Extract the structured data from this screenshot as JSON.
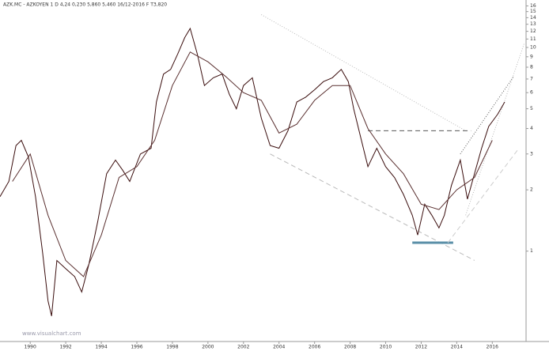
{
  "chart_data": {
    "type": "line",
    "header": "AZK.MC - AZKOYEN   1 D   4,24   0,230   5,860   5,460   16/12-2016 F   T3,820",
    "watermark": "www.visualchart.com",
    "log_scale": true,
    "grid": false,
    "xlim": [
      1988.3,
      2017.9
    ],
    "xticks": [
      1990,
      1992,
      1994,
      1996,
      1998,
      2000,
      2002,
      2004,
      2006,
      2008,
      2010,
      2012,
      2014,
      2016
    ],
    "ylim": [
      0.36,
      16.5
    ],
    "yticks": [
      1,
      2,
      3,
      4,
      5,
      6,
      7,
      8,
      9,
      10,
      11,
      12,
      13,
      14,
      15,
      16
    ],
    "series": [
      {
        "color": "#3a0d0d",
        "x": [
          1988.3,
          1988.8,
          1989.2,
          1989.5,
          1989.9,
          1990.3,
          1990.7,
          1991.0,
          1991.2,
          1991.5,
          1992.0,
          1992.5,
          1992.9,
          1993.3,
          1993.8,
          1994.3,
          1994.8,
          1995.2,
          1995.6,
          1996.2,
          1996.8,
          1997.1,
          1997.5,
          1997.9,
          1998.3,
          1998.7,
          1999.0,
          1999.4,
          1999.8,
          2000.3,
          2000.8,
          2001.2,
          2001.6,
          2002.0,
          2002.5,
          2003.0,
          2003.5,
          2004.0,
          2004.5,
          2005.0,
          2005.5,
          2006.0,
          2006.5,
          2007.0,
          2007.5,
          2007.9,
          2008.2,
          2008.6,
          2009.0,
          2009.5,
          2010.0,
          2010.5,
          2011.0,
          2011.5,
          2011.8,
          2012.2,
          2012.6,
          2013.0,
          2013.3,
          2013.7,
          2014.2,
          2014.6,
          2015.0,
          2015.4,
          2015.8,
          2016.3,
          2016.7
        ],
        "values": [
          1.85,
          2.2,
          3.3,
          3.5,
          2.9,
          1.85,
          0.98,
          0.57,
          0.48,
          0.9,
          0.82,
          0.75,
          0.63,
          0.86,
          1.4,
          2.4,
          2.8,
          2.5,
          2.2,
          3.0,
          3.2,
          5.4,
          7.4,
          7.8,
          9.3,
          11.2,
          12.4,
          9.3,
          6.5,
          7.1,
          7.4,
          5.9,
          5.0,
          6.5,
          7.1,
          4.5,
          3.3,
          3.2,
          3.9,
          5.4,
          5.7,
          6.2,
          6.8,
          7.1,
          7.8,
          6.8,
          5.0,
          3.6,
          2.6,
          3.2,
          2.6,
          2.3,
          1.9,
          1.5,
          1.2,
          1.7,
          1.5,
          1.3,
          1.5,
          2.1,
          2.8,
          1.8,
          2.4,
          3.2,
          4.1,
          4.7,
          5.4
        ]
      },
      {
        "color": "#5a3030",
        "x": [
          1989,
          1990,
          1991,
          1992,
          1993,
          1994,
          1995,
          1996,
          1997,
          1998,
          1999,
          2000,
          2001,
          2002,
          2003,
          2004,
          2005,
          2006,
          2007,
          2008,
          2009,
          2010,
          2011,
          2012,
          2013,
          2014,
          2015,
          2016
        ],
        "values": [
          2.2,
          3.0,
          1.5,
          0.9,
          0.75,
          1.2,
          2.3,
          2.6,
          3.5,
          6.5,
          9.5,
          8.5,
          7.2,
          6.0,
          5.5,
          3.8,
          4.2,
          5.5,
          6.5,
          6.5,
          4.0,
          3.0,
          2.4,
          1.7,
          1.6,
          2.0,
          2.3,
          3.5
        ]
      }
    ],
    "lines": [
      {
        "color": "#bbbbbb",
        "style": "dotted",
        "x": [
          2003.0,
          2014.5
        ],
        "values": [
          14.5,
          3.9
        ]
      },
      {
        "color": "#bbbbbb",
        "style": "dashed",
        "x": [
          2003.5,
          2015.0
        ],
        "values": [
          3.0,
          0.9
        ]
      },
      {
        "color": "#555555",
        "style": "dashed",
        "x": [
          2009.0,
          2014.8
        ],
        "values": [
          3.9,
          3.9
        ]
      },
      {
        "color": "#5a8fa8",
        "style": "solid",
        "x": [
          2011.5,
          2013.8
        ],
        "values": [
          1.1,
          1.1
        ]
      },
      {
        "color": "#cccccc",
        "style": "dashed",
        "x": [
          2013.5,
          2017.5
        ],
        "values": [
          1.1,
          3.2
        ]
      },
      {
        "color": "#555555",
        "style": "dotted",
        "x": [
          2014.2,
          2017.2
        ],
        "values": [
          3.0,
          7.2
        ]
      },
      {
        "color": "#bbbbbb",
        "style": "dotted",
        "x": [
          2014.5,
          2017.8
        ],
        "values": [
          1.5,
          10.5
        ]
      }
    ]
  }
}
